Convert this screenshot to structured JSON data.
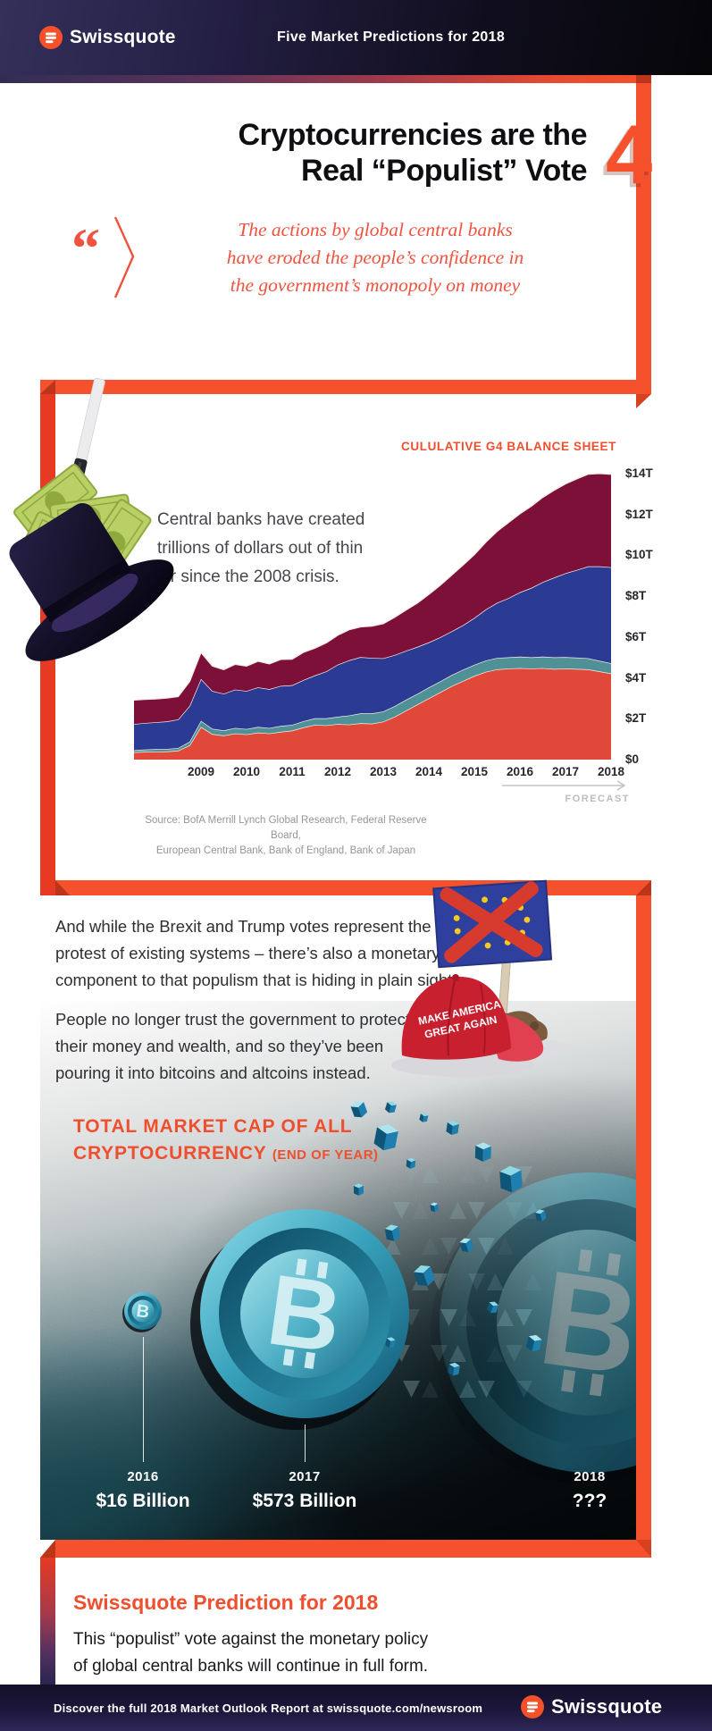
{
  "header": {
    "brand": "Swissquote",
    "title": "Five Market Predictions for 2018"
  },
  "hero": {
    "number": "4",
    "title_lines": [
      "Cryptocurrencies are the",
      "Real “Populist” Vote"
    ],
    "quote_mark": "“",
    "quote_lines": [
      "The actions by global central banks",
      "have eroded the people’s confidence in",
      "the government’s monopoly on money"
    ]
  },
  "chart_section": {
    "title": "CULULATIVE G4 BALANCE SHEET",
    "callout_lines": [
      "Central banks have created",
      "trillions of dollars out of thin",
      "air since the 2008 crisis."
    ],
    "forecast_label": "FORECAST",
    "source_lines": [
      "Source: BofA Merrill Lynch Global Research, Federal Reserve Board,",
      "European Central Bank, Bank of England, Bank of Japan"
    ]
  },
  "chart_data": {
    "type": "area",
    "stacked": true,
    "title": "CULULATIVE G4 BALANCE SHEET",
    "units": "USD trillions",
    "ylim": [
      0,
      14
    ],
    "x_start": 2007.5,
    "x_step": 0.25,
    "x_ticks": [
      2009,
      2010,
      2011,
      2012,
      2013,
      2014,
      2015,
      2016,
      2017,
      2018
    ],
    "y_ticks": [
      {
        "label": "$0",
        "value": 0
      },
      {
        "label": "$2T",
        "value": 2
      },
      {
        "label": "$4T",
        "value": 4
      },
      {
        "label": "$6T",
        "value": 6
      },
      {
        "label": "$8T",
        "value": 8
      },
      {
        "label": "$10T",
        "value": 10
      },
      {
        "label": "$12T",
        "value": 12
      },
      {
        "label": "$14T",
        "value": 14
      }
    ],
    "forecast_from": 2017,
    "boundary_stroke": "#f7efe6",
    "series": [
      {
        "name": "red (bottom layer)",
        "color": "#e0493a",
        "values": [
          0.36,
          0.38,
          0.39,
          0.4,
          0.44,
          0.7,
          1.6,
          1.25,
          1.18,
          1.28,
          1.24,
          1.32,
          1.28,
          1.36,
          1.42,
          1.58,
          1.7,
          1.68,
          1.74,
          1.72,
          1.78,
          1.76,
          1.86,
          2.1,
          2.4,
          2.7,
          3.0,
          3.3,
          3.6,
          3.85,
          4.1,
          4.3,
          4.42,
          4.46,
          4.48,
          4.46,
          4.48,
          4.44,
          4.46,
          4.44,
          4.42,
          4.32,
          4.22
        ]
      },
      {
        "name": "teal (second layer)",
        "color": "#4f9197",
        "values": [
          0.1,
          0.11,
          0.12,
          0.12,
          0.13,
          0.18,
          0.3,
          0.26,
          0.25,
          0.27,
          0.26,
          0.28,
          0.27,
          0.29,
          0.28,
          0.3,
          0.32,
          0.34,
          0.36,
          0.44,
          0.48,
          0.5,
          0.5,
          0.52,
          0.53,
          0.52,
          0.54,
          0.53,
          0.54,
          0.55,
          0.54,
          0.55,
          0.56,
          0.55,
          0.56,
          0.55,
          0.56,
          0.57,
          0.56,
          0.55,
          0.54,
          0.52,
          0.5
        ]
      },
      {
        "name": "blue (third layer)",
        "color": "#2b3a92",
        "values": [
          1.28,
          1.3,
          1.32,
          1.35,
          1.4,
          1.75,
          2.05,
          1.85,
          1.8,
          1.88,
          1.86,
          1.94,
          1.9,
          1.96,
          1.94,
          2.02,
          2.1,
          2.3,
          2.55,
          2.7,
          2.76,
          2.72,
          2.6,
          2.5,
          2.4,
          2.3,
          2.2,
          2.16,
          2.14,
          2.18,
          2.3,
          2.5,
          2.7,
          2.9,
          3.15,
          3.4,
          3.65,
          3.9,
          4.1,
          4.3,
          4.5,
          4.62,
          4.7
        ]
      },
      {
        "name": "maroon (top layer)",
        "color": "#7d1039",
        "values": [
          1.18,
          1.16,
          1.14,
          1.15,
          1.12,
          1.2,
          1.3,
          1.22,
          1.18,
          1.24,
          1.22,
          1.28,
          1.24,
          1.3,
          1.28,
          1.36,
          1.34,
          1.4,
          1.44,
          1.5,
          1.48,
          1.56,
          1.7,
          1.85,
          2.0,
          2.15,
          2.35,
          2.55,
          2.75,
          2.95,
          3.1,
          3.3,
          3.5,
          3.7,
          3.85,
          4.0,
          4.15,
          4.28,
          4.38,
          4.46,
          4.52,
          4.55,
          4.55
        ]
      }
    ]
  },
  "body": {
    "para1_lines": [
      "And while the Brexit and Trump votes represent the",
      "protest of existing systems – there’s also a monetary",
      "component to that populism that is hiding in plain sight."
    ],
    "para2_lines": [
      "People no longer trust the government to protect",
      "their money and wealth, and so they’ve been",
      "pouring it into bitcoins and altcoins instead."
    ],
    "maga_line1": "MAKE AMERICA",
    "maga_line2": "GREAT AGAIN"
  },
  "crypto_section": {
    "title_line1": "TOTAL MARKET CAP OF ALL",
    "title_line2": "CRYPTOCURRENCY",
    "title_suffix": "(END OF YEAR)",
    "bitcoin_symbol": "B",
    "entries": [
      {
        "year": "2016",
        "value": "$16 Billion"
      },
      {
        "year": "2017",
        "value": "$573 Billion"
      },
      {
        "year": "2018",
        "value": "???"
      }
    ]
  },
  "prediction": {
    "title": "Swissquote Prediction for 2018",
    "text_lines": [
      "This “populist” vote against the monetary policy",
      "of global central banks will continue in full form."
    ]
  },
  "footer": {
    "text": "Discover the full 2018 Market Outlook Report at swissquote.com/newsroom",
    "brand": "Swissquote"
  },
  "colors": {
    "accent_orange": "#f4512c",
    "quote_orange": "#ef5340",
    "frame_red": "#e63a22"
  }
}
